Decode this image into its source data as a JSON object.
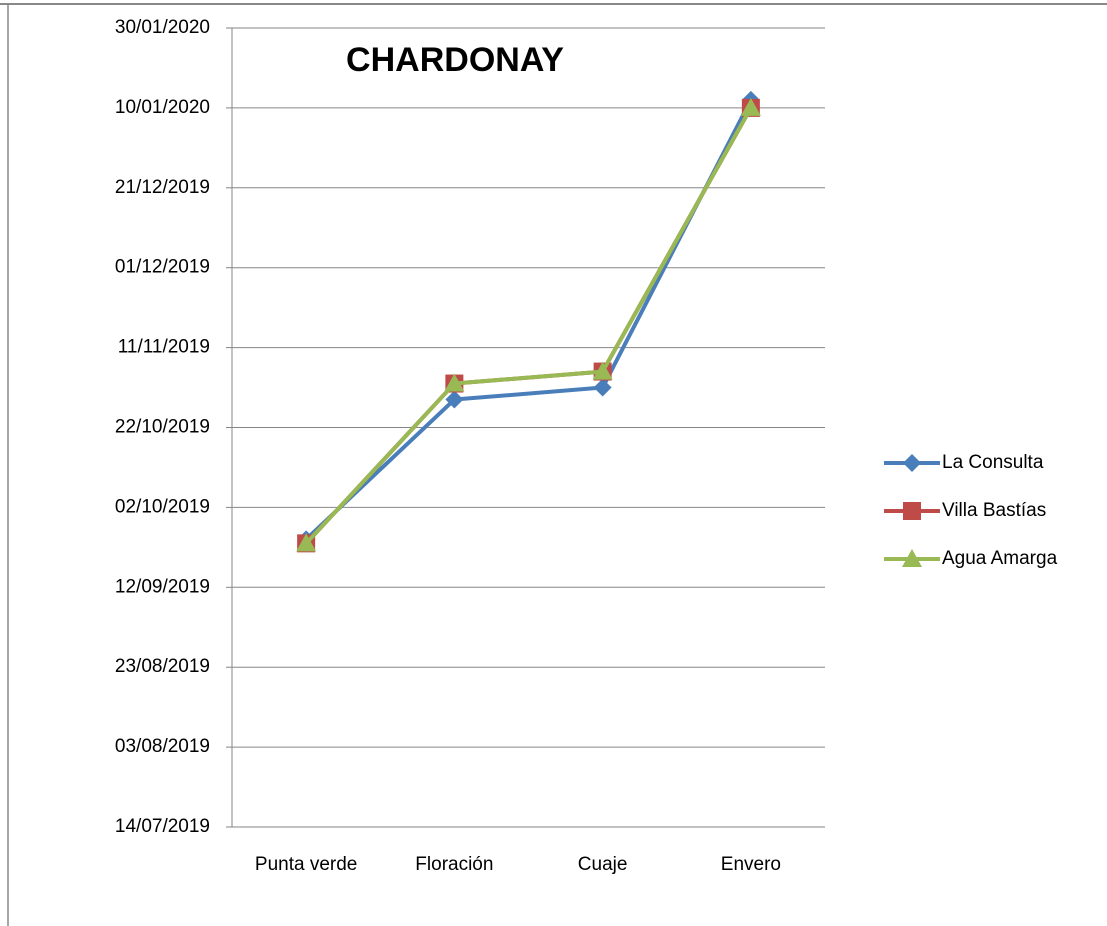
{
  "chart_data": {
    "type": "line",
    "title": "CHARDONAY",
    "categories": [
      "Punta verde",
      "Floración",
      "Cuaje",
      "Envero"
    ],
    "series": [
      {
        "name": "La Consulta",
        "color": "#4a7ebb",
        "marker": "diamond",
        "values": [
          "24/09/2019",
          "29/10/2019",
          "01/11/2019",
          "12/01/2020"
        ]
      },
      {
        "name": "Villa Bastías",
        "color": "#be4b48",
        "marker": "square",
        "values": [
          "23/09/2019",
          "02/11/2019",
          "05/11/2019",
          "10/01/2020"
        ]
      },
      {
        "name": "Agua Amarga",
        "color": "#98b954",
        "marker": "triangle",
        "values": [
          "23/09/2019",
          "02/11/2019",
          "05/11/2019",
          "10/01/2020"
        ]
      }
    ],
    "ylim": [
      "14/07/2019",
      "30/01/2020"
    ],
    "yticks": [
      "14/07/2019",
      "03/08/2019",
      "23/08/2019",
      "12/09/2019",
      "02/10/2019",
      "22/10/2019",
      "11/11/2019",
      "01/12/2019",
      "21/12/2019",
      "10/01/2020",
      "30/01/2020"
    ],
    "grid": true,
    "legend": "right"
  }
}
